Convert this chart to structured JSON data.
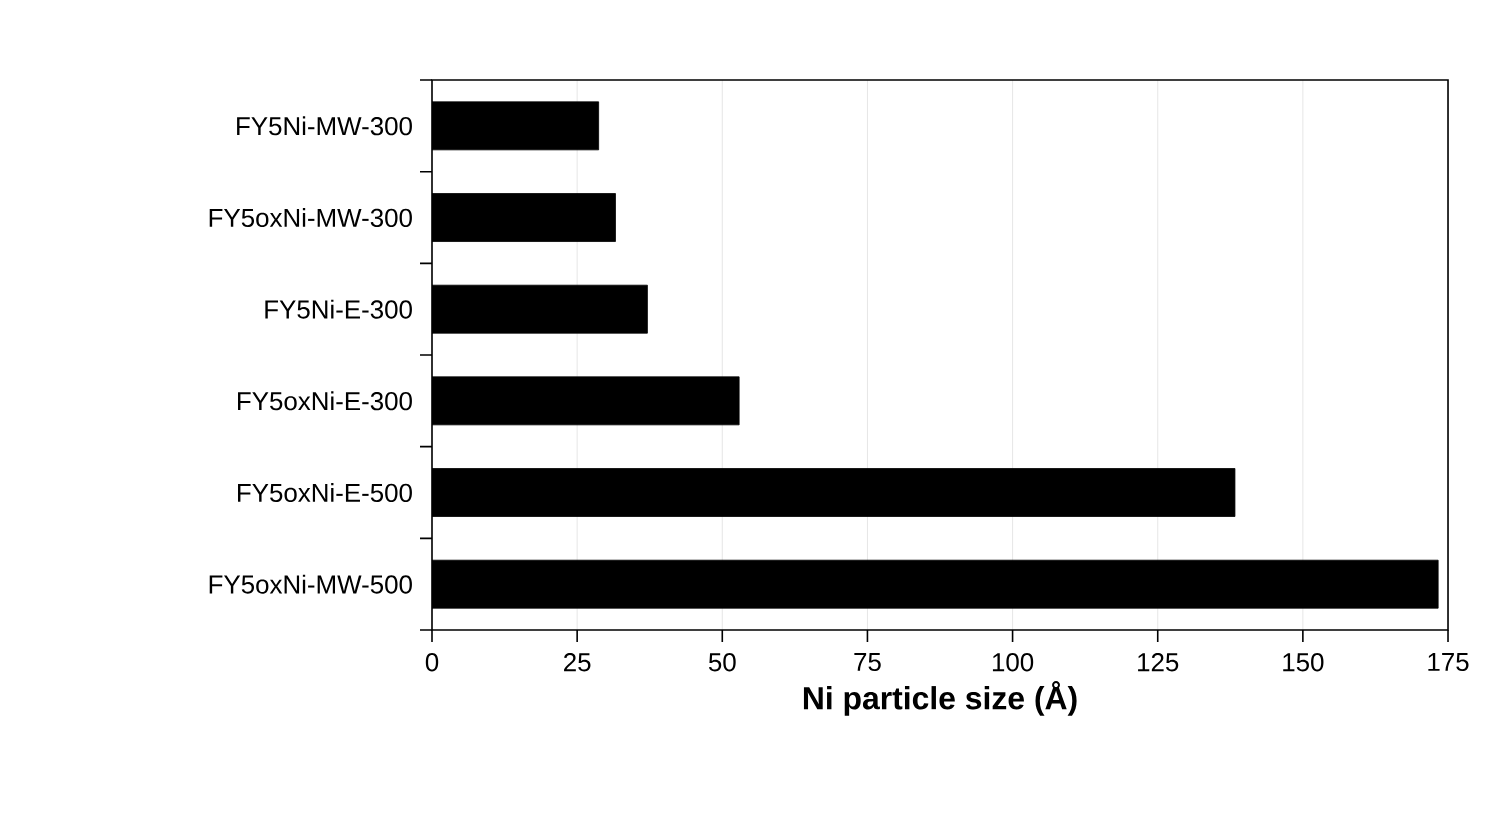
{
  "chart_data": {
    "type": "bar",
    "orientation": "horizontal",
    "xlabel": "Ni particle size (Å)",
    "categories": [
      "FY5Ni-MW-300",
      "FY5oxNi-MW-300",
      "FY5Ni-E-300",
      "FY5oxNi-E-300",
      "FY5oxNi-E-500",
      "FY5oxNi-MW-500"
    ],
    "values": [
      28.7,
      31.6,
      37.1,
      52.9,
      138.3,
      173.3
    ],
    "color": "#000000",
    "xlim": [
      0,
      175
    ],
    "xticks": [
      0,
      25,
      50,
      75,
      100,
      125,
      150,
      175
    ],
    "grid": "x"
  }
}
